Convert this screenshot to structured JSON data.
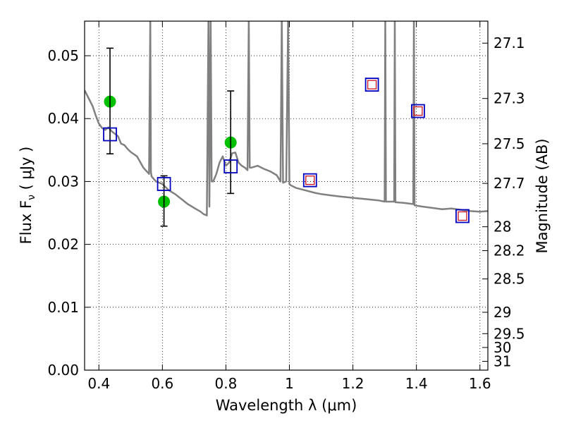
{
  "chart_data": {
    "type": "scatter",
    "xlabel": "Wavelength  λ (μm)",
    "ylabel": "Flux  F",
    "ylabel_sub": "ν",
    "ylabel_unit": "  ( μJy )",
    "y2label": "Magnitude (AB)",
    "xlim": [
      0.355,
      1.625
    ],
    "ylim": [
      0.0,
      0.0555
    ],
    "grid": true,
    "x_ticks": [
      0.4,
      0.6,
      0.8,
      1.0,
      1.2,
      1.4,
      1.6
    ],
    "x_tick_labels": [
      "0.4",
      "0.6",
      "0.8",
      "1",
      "1.2",
      "1.4",
      "1.6"
    ],
    "y_ticks": [
      0.0,
      0.01,
      0.02,
      0.03,
      0.04,
      0.05
    ],
    "y_tick_labels": [
      "0.00",
      "0.01",
      "0.02",
      "0.03",
      "0.04",
      "0.05"
    ],
    "y2_ticks": [
      {
        "label": "27.1",
        "flux": 0.052
      },
      {
        "label": "27.3",
        "flux": 0.0432
      },
      {
        "label": "27.5",
        "flux": 0.036
      },
      {
        "label": "27.7",
        "flux": 0.0297
      },
      {
        "label": "28",
        "flux": 0.0228
      },
      {
        "label": "28.2",
        "flux": 0.019
      },
      {
        "label": "28.5",
        "flux": 0.0145
      },
      {
        "label": "29",
        "flux": 0.0092
      },
      {
        "label": "29.5",
        "flux": 0.0058
      },
      {
        "label": "30",
        "flux": 0.0036
      },
      {
        "label": "31",
        "flux": 0.0014
      }
    ],
    "series": [
      {
        "kind": "line",
        "color": "#808080",
        "x": [
          0.355,
          0.37,
          0.38,
          0.39,
          0.4,
          0.41,
          0.42,
          0.43,
          0.44,
          0.45,
          0.46,
          0.47,
          0.48,
          0.49,
          0.5,
          0.52,
          0.54,
          0.558,
          0.562,
          0.564,
          0.566,
          0.58,
          0.6,
          0.62,
          0.64,
          0.66,
          0.68,
          0.7,
          0.72,
          0.73,
          0.74,
          0.745,
          0.748,
          0.752,
          0.755,
          0.76,
          0.77,
          0.78,
          0.79,
          0.8,
          0.81,
          0.82,
          0.83,
          0.84,
          0.85,
          0.86,
          0.868,
          0.872,
          0.875,
          0.88,
          0.9,
          0.92,
          0.94,
          0.96,
          0.972,
          0.976,
          0.98,
          0.99,
          0.996,
          1.0,
          1.004,
          1.02,
          1.05,
          1.08,
          1.1,
          1.13,
          1.16,
          1.2,
          1.24,
          1.28,
          1.3,
          1.302,
          1.304,
          1.32,
          1.33,
          1.332,
          1.334,
          1.36,
          1.39,
          1.392,
          1.394,
          1.42,
          1.45,
          1.48,
          1.51,
          1.54,
          1.57,
          1.6,
          1.625
        ],
        "y": [
          0.0445,
          0.043,
          0.042,
          0.0405,
          0.0392,
          0.0385,
          0.0382,
          0.0386,
          0.038,
          0.0376,
          0.0372,
          0.036,
          0.0358,
          0.0352,
          0.0347,
          0.034,
          0.0322,
          0.0312,
          0.056,
          0.0315,
          0.0308,
          0.03,
          0.0296,
          0.0286,
          0.028,
          0.0272,
          0.0264,
          0.0258,
          0.0252,
          0.0248,
          0.0246,
          0.056,
          0.026,
          0.056,
          0.03,
          0.03,
          0.0312,
          0.033,
          0.034,
          0.0325,
          0.033,
          0.0345,
          0.0346,
          0.033,
          0.0325,
          0.0322,
          0.0318,
          0.056,
          0.0322,
          0.0322,
          0.0325,
          0.032,
          0.0316,
          0.031,
          0.03,
          0.056,
          0.0298,
          0.03,
          0.056,
          0.0296,
          0.0294,
          0.029,
          0.0286,
          0.0282,
          0.028,
          0.0278,
          0.0276,
          0.0274,
          0.0272,
          0.027,
          0.0268,
          0.056,
          0.0268,
          0.0268,
          0.0268,
          0.056,
          0.0267,
          0.0266,
          0.0264,
          0.056,
          0.0262,
          0.026,
          0.0258,
          0.0256,
          0.0257,
          0.0255,
          0.0253,
          0.0252,
          0.0253
        ]
      },
      {
        "kind": "scatter",
        "marker": "circle",
        "color": "#00c000",
        "x": [
          0.435,
          0.605,
          0.815
        ],
        "y": [
          0.0427,
          0.0268,
          0.0362
        ]
      },
      {
        "kind": "errorbar",
        "color": "#000000",
        "x": [
          0.435,
          0.605,
          0.815
        ],
        "y": [
          0.0375,
          0.0296,
          0.0324
        ],
        "yerr_low": [
          0.0031,
          0.0067,
          0.0043
        ],
        "yerr_high": [
          0.0137,
          0.0013,
          0.012
        ]
      },
      {
        "kind": "scatter",
        "marker": "square",
        "color": "#0000c0",
        "x": [
          0.435,
          0.605,
          0.815,
          1.065,
          1.26,
          1.405,
          1.545
        ],
        "y": [
          0.0375,
          0.0296,
          0.0324,
          0.0302,
          0.0454,
          0.0412,
          0.0245
        ]
      },
      {
        "kind": "scatter",
        "marker": "small-square",
        "color": "#d0202a",
        "x": [
          1.065,
          1.26,
          1.405,
          1.545
        ],
        "y": [
          0.0302,
          0.0454,
          0.0412,
          0.0245
        ]
      }
    ]
  }
}
